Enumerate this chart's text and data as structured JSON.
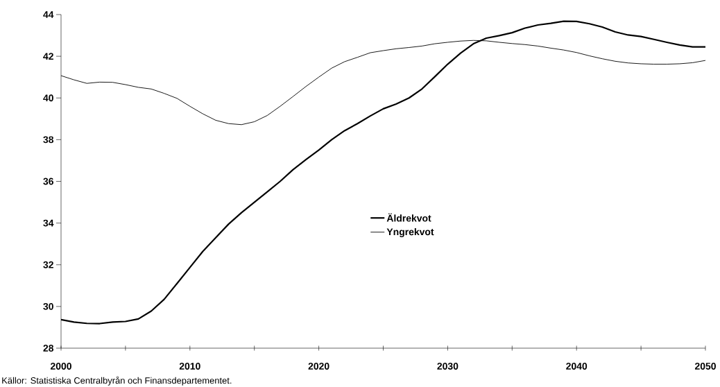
{
  "chart_data": {
    "type": "line",
    "x": [
      2000,
      2001,
      2002,
      2003,
      2004,
      2005,
      2006,
      2007,
      2008,
      2009,
      2010,
      2011,
      2012,
      2013,
      2014,
      2015,
      2016,
      2017,
      2018,
      2019,
      2020,
      2021,
      2022,
      2023,
      2024,
      2025,
      2026,
      2027,
      2028,
      2029,
      2030,
      2031,
      2032,
      2033,
      2034,
      2035,
      2036,
      2037,
      2038,
      2039,
      2040,
      2041,
      2042,
      2043,
      2044,
      2045,
      2046,
      2047,
      2048,
      2049,
      2050
    ],
    "series": [
      {
        "name": "Äldrekvot",
        "color": "#000000",
        "values": [
          29.37,
          29.25,
          29.19,
          29.18,
          29.25,
          29.28,
          29.4,
          29.78,
          30.34,
          31.1,
          31.87,
          32.64,
          33.3,
          33.95,
          34.5,
          35.0,
          35.5,
          36.0,
          36.56,
          37.04,
          37.5,
          38.0,
          38.43,
          38.77,
          39.14,
          39.48,
          39.71,
          40.0,
          40.43,
          41.02,
          41.62,
          42.15,
          42.6,
          42.87,
          42.99,
          43.13,
          43.35,
          43.5,
          43.58,
          43.68,
          43.67,
          43.56,
          43.4,
          43.17,
          43.02,
          42.95,
          42.81,
          42.67,
          42.54,
          42.45,
          42.45
        ]
      },
      {
        "name": "Yngrekvot",
        "color": "#000000",
        "values": [
          41.07,
          40.87,
          40.7,
          40.76,
          40.75,
          40.64,
          40.51,
          40.43,
          40.22,
          39.98,
          39.6,
          39.24,
          38.93,
          38.77,
          38.72,
          38.86,
          39.16,
          39.6,
          40.07,
          40.55,
          41.0,
          41.43,
          41.74,
          41.95,
          42.17,
          42.27,
          42.36,
          42.42,
          42.49,
          42.6,
          42.67,
          42.73,
          42.76,
          42.74,
          42.67,
          42.61,
          42.56,
          42.49,
          42.39,
          42.3,
          42.18,
          42.02,
          41.88,
          41.76,
          41.68,
          41.64,
          41.62,
          41.62,
          41.64,
          41.69,
          41.8
        ]
      }
    ],
    "xlim": [
      2000,
      2050
    ],
    "xticks": [
      2000,
      {
        "value": 2005,
        "label": null
      },
      2010,
      {
        "value": 2015,
        "label": null
      },
      2020,
      {
        "value": 2025,
        "label": null
      },
      2030,
      {
        "value": 2035,
        "label": null
      },
      2040,
      {
        "value": 2045,
        "label": null
      },
      2050
    ],
    "ylim": [
      28,
      44
    ],
    "yticks": [
      28,
      30,
      32,
      34,
      36,
      38,
      40,
      42,
      44
    ],
    "grid": false,
    "legend": "center",
    "marker": "none",
    "line_style": "solid",
    "annotations": [
      "Källor: Statistiska Centralbyrån och Finansdepartementet."
    ]
  }
}
